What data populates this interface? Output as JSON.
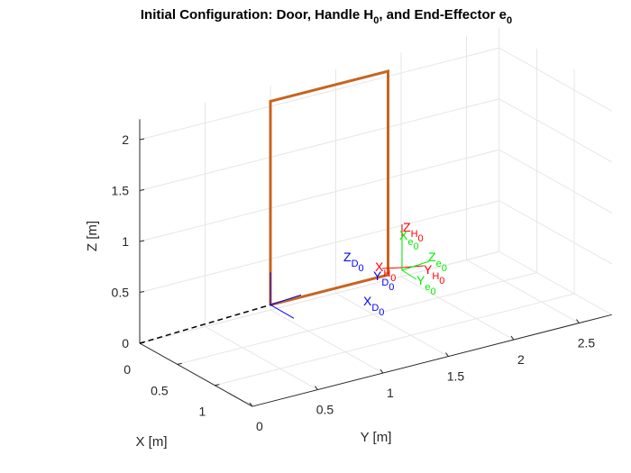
{
  "chart_data": {
    "type": "line3d",
    "title": "Initial Configuration: Door, Handle H",
    "title_sub1": "0",
    "title_mid": ", and End-Effector e",
    "title_sub2": "0",
    "xlabel": "X [m]",
    "ylabel": "Y [m]",
    "zlabel": "Z [m]",
    "xlim": [
      0,
      1.5
    ],
    "ylim": [
      0,
      2.75
    ],
    "zlim": [
      0,
      2.2
    ],
    "grid": true,
    "view": "3d-perspective",
    "x_ticks": [
      "0",
      "0.5",
      "1"
    ],
    "y_ticks": [
      "0",
      "0.5",
      "1",
      "1.5",
      "2",
      "2.5"
    ],
    "z_ticks": [
      "0",
      "0.5",
      "1",
      "1.5",
      "2"
    ],
    "door_outline": {
      "color": "#c8641e",
      "points": [
        [
          0,
          1.0,
          0.05
        ],
        [
          0,
          1.0,
          2.05
        ],
        [
          0,
          1.9,
          2.05
        ],
        [
          0,
          1.9,
          0.05
        ],
        [
          0,
          1.0,
          0.05
        ]
      ]
    },
    "origin_line": {
      "color": "#000000",
      "style": "dashed",
      "from": [
        0,
        0,
        0
      ],
      "to": [
        0,
        1.0,
        0.05
      ]
    },
    "frames": [
      {
        "name": "D",
        "color": "#0000ff",
        "origin": [
          0,
          1.0,
          0.05
        ],
        "x_label": "X",
        "x_sub": "D",
        "x_sub2": "0",
        "y_label": "Y",
        "y_sub": "D",
        "y_sub2": "0",
        "z_label": "Z",
        "z_sub": "D",
        "z_sub2": "0"
      },
      {
        "name": "H",
        "color": "#ff0000",
        "x_label": "X",
        "x_sub": "H",
        "x_sub2": "0",
        "y_label": "Y",
        "y_sub": "H",
        "y_sub2": "0",
        "z_label": "Z",
        "z_sub": "H",
        "z_sub2": "0"
      },
      {
        "name": "e",
        "color": "#00ff00",
        "x_label": "X",
        "x_sub": "e",
        "x_sub2": "0",
        "y_label": "Y",
        "y_sub": "e",
        "y_sub2": "0",
        "z_label": "Z",
        "z_sub": "e",
        "z_sub2": "0"
      }
    ]
  }
}
